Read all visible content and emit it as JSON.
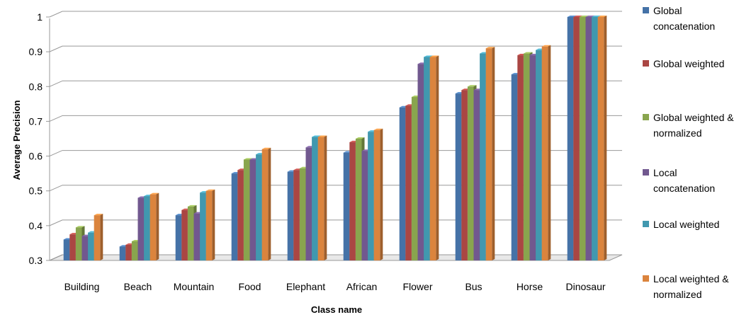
{
  "chart_data": {
    "type": "bar",
    "xlabel": "Class name",
    "ylabel": "Average Precision",
    "ylim": [
      0.3,
      1.0
    ],
    "yticks": [
      "0.3",
      "0.4",
      "0.5",
      "0.6",
      "0.7",
      "0.8",
      "0.9",
      "1"
    ],
    "grid": true,
    "legend_position": "right",
    "categories": [
      "Building",
      "Beach",
      "Mountain",
      "Food",
      "Elephant",
      "African",
      "Flower",
      "Bus",
      "Horse",
      "Dinosaur"
    ],
    "series": [
      {
        "name": "Global concatenation",
        "color": "#4572A7",
        "values": [
          0.36,
          0.34,
          0.43,
          0.55,
          0.555,
          0.61,
          0.74,
          0.78,
          0.835,
          1.0
        ]
      },
      {
        "name": "Global weighted",
        "color": "#AA4643",
        "values": [
          0.375,
          0.345,
          0.445,
          0.56,
          0.56,
          0.64,
          0.745,
          0.79,
          0.89,
          1.0
        ]
      },
      {
        "name": "Global weighted & normalized",
        "color": "#89A54E",
        "values": [
          0.395,
          0.355,
          0.455,
          0.59,
          0.565,
          0.65,
          0.77,
          0.8,
          0.895,
          1.0
        ]
      },
      {
        "name": "Local concatenation",
        "color": "#71588F",
        "values": [
          0.37,
          0.48,
          0.435,
          0.59,
          0.625,
          0.615,
          0.865,
          0.79,
          0.89,
          1.0
        ]
      },
      {
        "name": "Local weighted",
        "color": "#4198AF",
        "values": [
          0.38,
          0.485,
          0.495,
          0.605,
          0.655,
          0.67,
          0.885,
          0.895,
          0.905,
          1.0
        ]
      },
      {
        "name": "Local weighted & normalized",
        "color": "#DB843D",
        "values": [
          0.43,
          0.49,
          0.5,
          0.62,
          0.655,
          0.675,
          0.885,
          0.91,
          0.915,
          1.0
        ]
      }
    ]
  },
  "legend": {
    "items": [
      {
        "label": "Global concatenation"
      },
      {
        "label": "Global weighted"
      },
      {
        "label": "Global weighted & normalized"
      },
      {
        "label": "Local concatenation"
      },
      {
        "label": "Local weighted"
      },
      {
        "label": "Local weighted & normalized"
      }
    ]
  }
}
